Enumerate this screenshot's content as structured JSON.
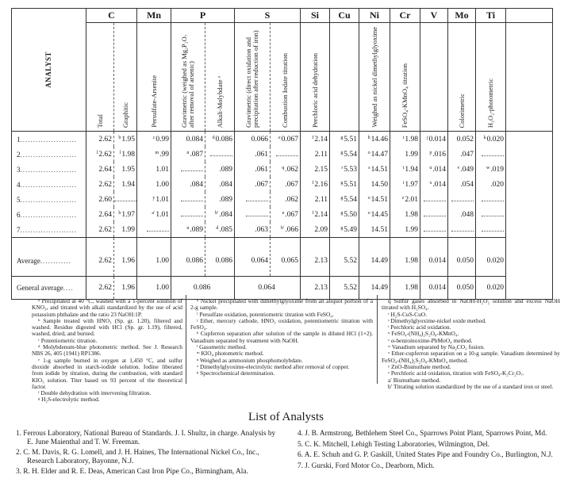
{
  "table": {
    "element_headers": [
      "C",
      "Mn",
      "P",
      "S",
      "Si",
      "Cu",
      "Ni",
      "Cr",
      "V",
      "Mo",
      "Ti",
      ""
    ],
    "analyst_header": "ANALYST",
    "method_headers": [
      "Total",
      "Graphitic",
      "Persulfate-Arsenite",
      "Gravimetric (weighed as Mg₂P₂O₇ after removal of arsenic)",
      "Alkali-Molybdate ᵃ",
      "Gravimetric (direct oxidation and precipitation after reduction of iron)",
      "Combustion Iodate titration",
      "Perchloric acid dehydration",
      "",
      "Weighed as nickel dimethylglyoxime",
      "FeSO₄-KMnO₄ titration",
      "",
      "Colorimetric",
      "H₂O₂-photometric",
      ""
    ],
    "rows": [
      {
        "label": "1",
        "cells": [
          {
            "s": "",
            "v": "2.62"
          },
          {
            "s": "b",
            "v": "1.95"
          },
          {
            "s": "c",
            "v": "0.99"
          },
          {
            "s": "",
            "v": "0.084"
          },
          {
            "s": "d",
            "v": "0.086"
          },
          {
            "s": "",
            "v": "0.066"
          },
          {
            "s": "e",
            "v": "0.067"
          },
          {
            "s": "f",
            "v": "2.14"
          },
          {
            "s": "g",
            "v": "5.51"
          },
          {
            "s": "h",
            "v": "14.46"
          },
          {
            "s": "i",
            "v": "1.98"
          },
          {
            "s": "j",
            "v": "0.014"
          },
          {
            "s": "",
            "v": "0.052"
          },
          {
            "s": "k",
            "v": "0.020"
          }
        ]
      },
      {
        "label": "2",
        "cells": [
          {
            "s": "l",
            "v": "2.62"
          },
          {
            "s": "l",
            "v": "1.98"
          },
          {
            "s": "m",
            "v": ".99"
          },
          {
            "s": "n",
            "v": ".087"
          },
          {
            "s": "",
            "v": ""
          },
          {
            "s": "",
            "v": ".061"
          },
          {
            "s": "",
            "v": ""
          },
          {
            "s": "",
            "v": "2.11"
          },
          {
            "s": "g",
            "v": "5.54"
          },
          {
            "s": "o",
            "v": "14.47"
          },
          {
            "s": "",
            "v": "1.99"
          },
          {
            "s": "p",
            "v": ".016"
          },
          {
            "s": "",
            "v": ".047"
          },
          {
            "s": "",
            "v": ""
          }
        ]
      },
      {
        "label": "3",
        "cells": [
          {
            "s": "",
            "v": "2.64"
          },
          {
            "s": "",
            "v": "1.95"
          },
          {
            "s": "",
            "v": "1.01"
          },
          {
            "s": "",
            "v": ""
          },
          {
            "s": "",
            "v": ".089"
          },
          {
            "s": "",
            "v": ".061"
          },
          {
            "s": "q",
            "v": ".062"
          },
          {
            "s": "",
            "v": "2.15"
          },
          {
            "s": "r",
            "v": "5.53"
          },
          {
            "s": "s",
            "v": "14.51"
          },
          {
            "s": "t",
            "v": "1.94"
          },
          {
            "s": "u",
            "v": ".014"
          },
          {
            "s": "v",
            "v": ".049"
          },
          {
            "s": "w",
            "v": ".019"
          }
        ]
      },
      {
        "label": "4",
        "cells": [
          {
            "s": "",
            "v": "2.62"
          },
          {
            "s": "",
            "v": "1.94"
          },
          {
            "s": "",
            "v": "1.00"
          },
          {
            "s": "",
            "v": ".084"
          },
          {
            "s": "",
            "v": ".084"
          },
          {
            "s": "",
            "v": ".067"
          },
          {
            "s": "",
            "v": ".067"
          },
          {
            "s": "f",
            "v": "2.16"
          },
          {
            "s": "g",
            "v": "5.51"
          },
          {
            "s": "",
            "v": "14.50"
          },
          {
            "s": "i",
            "v": "1.97"
          },
          {
            "s": "x",
            "v": ".014"
          },
          {
            "s": "",
            "v": ".054"
          },
          {
            "s": "",
            "v": ".020"
          }
        ]
      },
      {
        "label": "5",
        "cells": [
          {
            "s": "",
            "v": "2.60"
          },
          {
            "s": "",
            "v": ""
          },
          {
            "s": "y",
            "v": "1.01"
          },
          {
            "s": "",
            "v": ""
          },
          {
            "s": "",
            "v": ".089"
          },
          {
            "s": "",
            "v": ""
          },
          {
            "s": "",
            "v": ".062"
          },
          {
            "s": "",
            "v": "2.11"
          },
          {
            "s": "g",
            "v": "5.54"
          },
          {
            "s": "o",
            "v": "14.51"
          },
          {
            "s": "z",
            "v": "2.01"
          },
          {
            "s": "",
            "v": ""
          },
          {
            "s": "",
            "v": ""
          },
          {
            "s": "",
            "v": ""
          }
        ]
      },
      {
        "label": "6",
        "cells": [
          {
            "s": "",
            "v": "2.64"
          },
          {
            "s": "b",
            "v": "1.97"
          },
          {
            "s": "a′",
            "v": "1.01"
          },
          {
            "s": "",
            "v": ""
          },
          {
            "s": "b′",
            "v": ".084"
          },
          {
            "s": "",
            "v": ""
          },
          {
            "s": "e",
            "v": ".067"
          },
          {
            "s": "f",
            "v": "2.14"
          },
          {
            "s": "g",
            "v": "5.50"
          },
          {
            "s": "o",
            "v": "14.45"
          },
          {
            "s": "",
            "v": "1.98"
          },
          {
            "s": "",
            "v": ""
          },
          {
            "s": "",
            "v": ".048"
          },
          {
            "s": "",
            "v": ""
          }
        ]
      },
      {
        "label": "7",
        "cells": [
          {
            "s": "",
            "v": "2.62"
          },
          {
            "s": "",
            "v": "1.99"
          },
          {
            "s": "",
            "v": ""
          },
          {
            "s": "n",
            "v": ".089"
          },
          {
            "s": "d",
            "v": ".085"
          },
          {
            "s": "",
            "v": ".063"
          },
          {
            "s": "b′",
            "v": ".066"
          },
          {
            "s": "",
            "v": "2.09"
          },
          {
            "s": "g",
            "v": "5.49"
          },
          {
            "s": "",
            "v": "14.51"
          },
          {
            "s": "",
            "v": "1.99"
          },
          {
            "s": "",
            "v": ""
          },
          {
            "s": "",
            "v": ""
          },
          {
            "s": "",
            "v": ""
          }
        ]
      }
    ],
    "average": {
      "label": "Average",
      "values": [
        "2.62",
        "1.96",
        "1.00",
        "0.086",
        "0.086",
        "0.064",
        "0.065",
        "2.13",
        "5.52",
        "14.49",
        "1.98",
        "0.014",
        "0.050",
        "0.020"
      ]
    },
    "general_average": {
      "label": "General average",
      "values": [
        "2.62",
        "1.96",
        "1.00",
        "0.086",
        "0.064",
        "2.13",
        "5.52",
        "14.49",
        "1.98",
        "0.014",
        "0.050",
        "0.020"
      ]
    }
  },
  "footnotes": [
    [
      "ᵃ Precipitated at 40 °C, washed with a 1-percent solution of KNO₃, and titrated with alkali standardized by the use of acid potassium phthalate and the ratio 23 NaOH:1P.",
      "ᵇ Sample treated with HNO₃ (Sp. gr. 1.20), filtered and washed. Residue digested with HCl (Sp. gr. 1.19), filtered, washed, dried, and burned.",
      "ᶜ Potentiometric titration.",
      "ᵈ Molybdenum-blue photometric method. See J. Research NBS 26, 405 (1941) RP1386.",
      "ᵉ 1-g sample burned in oxygen at 1,450 °C, and sulfur dioxide absorbed in starch-iodide solution. Iodine liberated from iodide by titration, during the combustion, with standard KIO₃ solution. Titer based on 93 percent of the theoretical factor.",
      "ᶠ Double dehydration with intervening filtration.",
      "ᵍ H₂S-electrolytic method."
    ],
    [
      "ʰ Nickel precipitated with dimethylglyoxime from an aliquot portion of a 2-g sample.",
      "ⁱ Persulfate oxidation, potentiometric titration with FeSO₄.",
      "ʲ Ether, mercury cathode, HNO₃ oxidation, potentiometric titration with FeSO₄.",
      "ᵏ Cupferron separation after solution of the sample in diluted HCl (1+2). Vanadium separated by treatment with NaOH.",
      "ˡ Gasometric method.",
      "ᵐ KIO₄ photometric method.",
      "ⁿ Weighed as ammonium phosphomolybdate.",
      "ᵒ Dimethylglyoxime-electrolytic method after removal of copper.",
      "ᵖ Spectrochemical determination."
    ],
    [
      "q Sulfur gases absorbed in NaOH-H₂O₂ solution and excess NaOH titrated with H₂SO₄.",
      "ʳ H₂S-CuS-CuO.",
      "ˢ Dimethylglyoxime-nickel oxide method.",
      "ᵗ Perchloric acid oxidation.",
      "ᵘ FeSO₄-(NH₄)₂S₂O₈-KMnO₄.",
      "ᵛ α-benzoinoxime-PbMoO₄ method.",
      "ʷ Vanadium separated by Na₂CO₃ fusion.",
      "ˣ Ether-cupferron separation on a 10-g sample. Vanadium determined by FeSO₄-(NH₄)₂S₂O₈-KMnO₄ method.",
      "ʸ ZnO-Bismuthate method.",
      "ᶻ Perchloric acid oxidation, titration with FeSO₄-K₂Cr₂O₇.",
      "a′ Bismuthate method.",
      "b′ Titrating solution standardized by the use of a standard iron or steel."
    ]
  ],
  "analysts": {
    "title": "List of Analysts",
    "left": [
      "1. Ferrous Laboratory, National Bureau of Standards. J. I. Shultz, in charge. Analysis by E. June Maienthal and T. W. Freeman.",
      "2. C. M. Davis, R. G. Lomell, and J. H. Haines, The International Nickel Co., Inc., Research Laboratory, Bayonne, N.J.",
      "3. R. H. Elder and R. E. Deas, American Cast Iron Pipe Co., Birmingham, Ala."
    ],
    "right": [
      "4. J. B. Armstrong, Bethlehem Steel Co., Sparrows Point Plant, Sparrows Point, Md.",
      "5. C. K. Mitchell, Lehigh Testing Laboratories, Wilmington, Del.",
      "6. A. E. Schuh and G. P. Gaskill, United States Pipe and Foundry Co., Burlington, N.J.",
      "7. J. Gurski, Ford Motor Co., Dearborn, Mich."
    ]
  }
}
